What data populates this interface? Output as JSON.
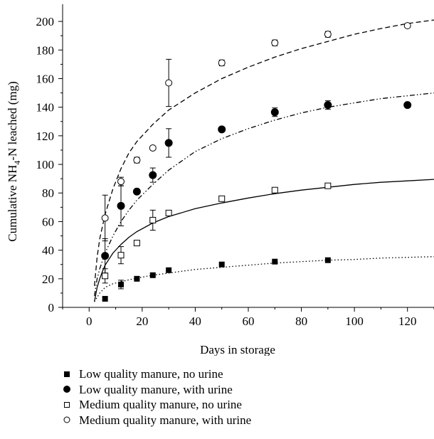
{
  "chart_data": {
    "type": "scatter",
    "title": "",
    "xlabel": "Days in storage",
    "ylabel": "Cumulative NH4-N leached (mg)",
    "ylabel_parts": {
      "before": "Cumulative NH",
      "subscript": "4",
      "after": "-N leached (mg)"
    },
    "xlim": [
      -10,
      130
    ],
    "ylim": [
      0,
      210
    ],
    "x_ticks": [
      0,
      20,
      40,
      60,
      80,
      100,
      120
    ],
    "y_ticks": [
      0,
      20,
      40,
      60,
      80,
      100,
      120,
      140,
      160,
      180,
      200
    ],
    "grid": false,
    "legend_position": "below",
    "series": [
      {
        "name": "Low quality manure, no urine",
        "marker": "square-filled",
        "line": "dotted",
        "fit_peak_x": 6,
        "fit_peak_y": 6,
        "points": [
          {
            "x": 6,
            "y": 6,
            "err": 0
          },
          {
            "x": 12,
            "y": 16,
            "err": 3
          },
          {
            "x": 18,
            "y": 20,
            "err": 0
          },
          {
            "x": 24,
            "y": 22.5,
            "err": 0
          },
          {
            "x": 30,
            "y": 26,
            "err": 0
          },
          {
            "x": 50,
            "y": 30,
            "err": 0
          },
          {
            "x": 70,
            "y": 32,
            "err": 0
          },
          {
            "x": 90,
            "y": 33,
            "err": 0
          }
        ],
        "fit": [
          [
            2,
            4
          ],
          [
            4,
            10
          ],
          [
            6,
            14
          ],
          [
            9,
            16.5
          ],
          [
            12,
            18
          ],
          [
            18,
            20.5
          ],
          [
            24,
            22.5
          ],
          [
            30,
            24
          ],
          [
            40,
            26.5
          ],
          [
            50,
            28
          ],
          [
            60,
            29.5
          ],
          [
            70,
            31
          ],
          [
            80,
            32
          ],
          [
            90,
            33
          ],
          [
            100,
            33.5
          ],
          [
            110,
            34.5
          ],
          [
            120,
            35
          ],
          [
            130,
            35.5
          ]
        ]
      },
      {
        "name": "Low quality manure, with urine",
        "marker": "circle-filled",
        "line": "solid",
        "points": [
          {
            "x": 6,
            "y": 36,
            "err": 12
          },
          {
            "x": 12,
            "y": 71,
            "err": 14
          },
          {
            "x": 18,
            "y": 81,
            "err": 0
          },
          {
            "x": 24,
            "y": 92.5,
            "err": 5
          },
          {
            "x": 30,
            "y": 115,
            "err": 10
          },
          {
            "x": 50,
            "y": 124.5,
            "err": 0
          },
          {
            "x": 70,
            "y": 136.5,
            "err": 3
          },
          {
            "x": 90,
            "y": 141.5,
            "err": 3
          },
          {
            "x": 120,
            "y": 141.5,
            "err": 0
          }
        ],
        "fit": [
          [
            2,
            8
          ],
          [
            3,
            20
          ],
          [
            4,
            27
          ],
          [
            6,
            38
          ],
          [
            9,
            50
          ],
          [
            12,
            60
          ],
          [
            15,
            68
          ],
          [
            18,
            75
          ],
          [
            24,
            86
          ],
          [
            30,
            96
          ],
          [
            40,
            109
          ],
          [
            50,
            118
          ],
          [
            60,
            125
          ],
          [
            70,
            131
          ],
          [
            80,
            136
          ],
          [
            90,
            140
          ],
          [
            100,
            143
          ],
          [
            110,
            146
          ],
          [
            120,
            148
          ],
          [
            130,
            150
          ]
        ]
      },
      {
        "name": "Medium quality manure, no urine",
        "marker": "square-open",
        "line": "solid",
        "points": [
          {
            "x": 6,
            "y": 22,
            "err": 5
          },
          {
            "x": 12,
            "y": 36.5,
            "err": 6
          },
          {
            "x": 18,
            "y": 45,
            "err": 0
          },
          {
            "x": 24,
            "y": 61,
            "err": 7
          },
          {
            "x": 30,
            "y": 66,
            "err": 0
          },
          {
            "x": 50,
            "y": 76,
            "err": 0
          },
          {
            "x": 70,
            "y": 82,
            "err": 0
          },
          {
            "x": 90,
            "y": 85,
            "err": 1
          }
        ],
        "fit": [
          [
            2,
            4
          ],
          [
            3,
            14
          ],
          [
            4,
            20
          ],
          [
            5,
            25
          ],
          [
            6,
            29.5
          ],
          [
            9,
            38
          ],
          [
            12,
            44
          ],
          [
            15,
            49
          ],
          [
            18,
            53
          ],
          [
            24,
            59
          ],
          [
            30,
            63.5
          ],
          [
            40,
            69
          ],
          [
            50,
            73
          ],
          [
            60,
            76.5
          ],
          [
            70,
            79.5
          ],
          [
            80,
            82
          ],
          [
            90,
            84
          ],
          [
            100,
            86
          ],
          [
            110,
            87.5
          ],
          [
            120,
            88.5
          ],
          [
            130,
            89.5
          ]
        ]
      },
      {
        "name": "Medium quality manure, with urine",
        "marker": "circle-open",
        "line": "dashed",
        "points": [
          {
            "x": 6,
            "y": 62.5,
            "err": 16
          },
          {
            "x": 12,
            "y": 88,
            "err": 3
          },
          {
            "x": 18,
            "y": 103,
            "err": 2
          },
          {
            "x": 24,
            "y": 111.5,
            "err": 0
          },
          {
            "x": 30,
            "y": 157,
            "err": 16.5
          },
          {
            "x": 50,
            "y": 171,
            "err": 2
          },
          {
            "x": 70,
            "y": 185,
            "err": 2
          },
          {
            "x": 90,
            "y": 191,
            "err": 2
          },
          {
            "x": 120,
            "y": 197,
            "err": 0
          }
        ],
        "fit": [
          [
            2,
            15
          ],
          [
            3,
            35
          ],
          [
            4,
            48
          ],
          [
            6,
            65
          ],
          [
            9,
            83
          ],
          [
            12,
            97
          ],
          [
            15,
            108
          ],
          [
            18,
            116
          ],
          [
            24,
            128
          ],
          [
            30,
            138
          ],
          [
            40,
            150
          ],
          [
            50,
            160
          ],
          [
            60,
            168
          ],
          [
            70,
            175
          ],
          [
            80,
            181
          ],
          [
            90,
            186
          ],
          [
            100,
            191
          ],
          [
            110,
            195
          ],
          [
            120,
            198.5
          ],
          [
            130,
            201
          ]
        ]
      }
    ]
  }
}
